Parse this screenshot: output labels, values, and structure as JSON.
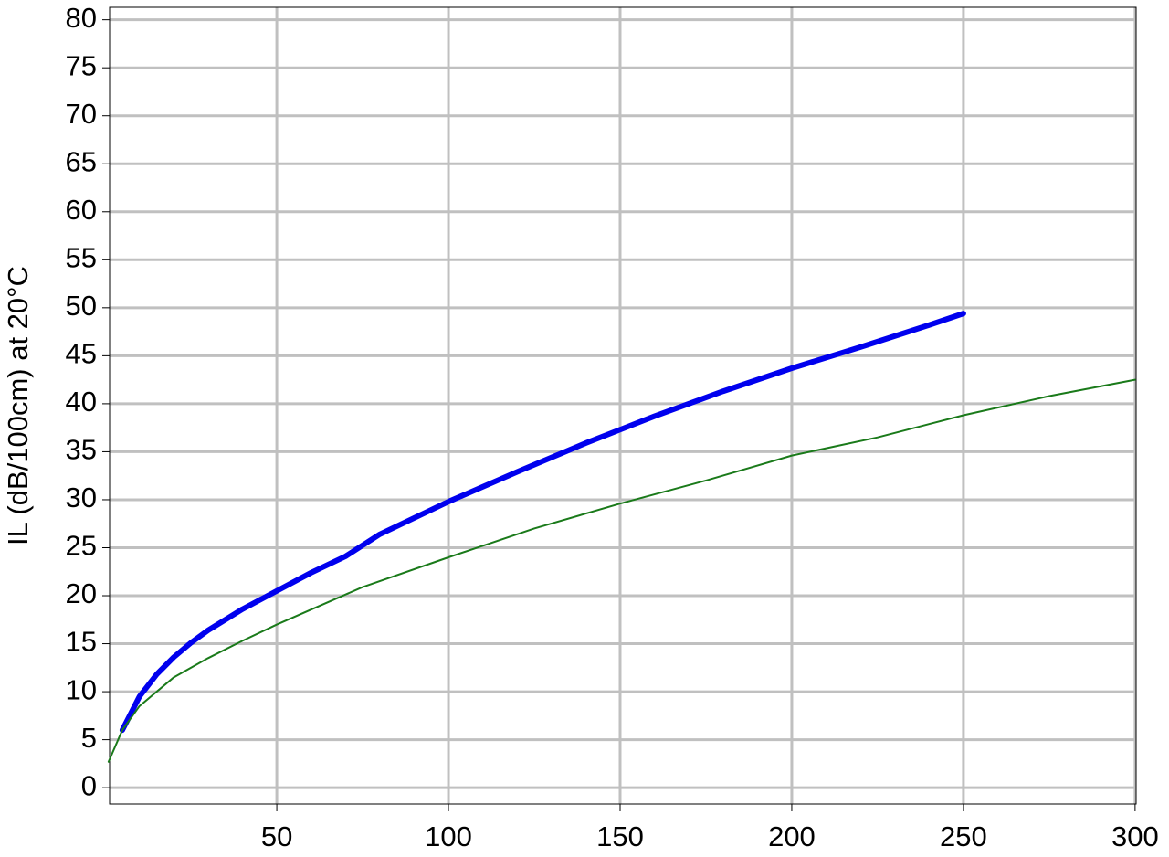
{
  "chart_data": {
    "type": "line",
    "y_label": "IL (dB/100cm) at 20°C",
    "xlim": [
      1.3,
      300.3
    ],
    "ylim": [
      -1.7,
      81.3
    ],
    "xticks": [
      50,
      100,
      150,
      200,
      250,
      300
    ],
    "yticks": [
      0,
      5,
      10,
      15,
      20,
      25,
      30,
      35,
      40,
      45,
      50,
      55,
      60,
      65,
      70,
      75,
      80
    ],
    "grid": true,
    "series": [
      {
        "color": "#0000ee",
        "x": [
          5,
          10,
          15,
          20,
          25,
          30,
          40,
          50,
          60,
          70,
          80,
          90,
          100,
          120,
          140,
          150,
          160,
          180,
          200,
          220,
          240,
          250
        ],
        "values": [
          6,
          9.5,
          11.8,
          13.6,
          15.1,
          16.4,
          18.6,
          20.5,
          22.4,
          24.1,
          26.4,
          28.1,
          29.8,
          32.9,
          35.9,
          37.3,
          38.7,
          41.3,
          43.7,
          45.9,
          48.2,
          49.4
        ]
      },
      {
        "color": "#1a7a1a",
        "x": [
          1,
          5,
          10,
          20,
          30,
          40,
          50,
          75,
          100,
          125,
          150,
          175,
          200,
          225,
          250,
          275,
          300
        ],
        "values": [
          2.7,
          6,
          8.5,
          11.5,
          13.5,
          15.3,
          17,
          20.9,
          24,
          27,
          29.6,
          32,
          34.6,
          36.5,
          38.8,
          40.8,
          42.5
        ]
      }
    ]
  }
}
